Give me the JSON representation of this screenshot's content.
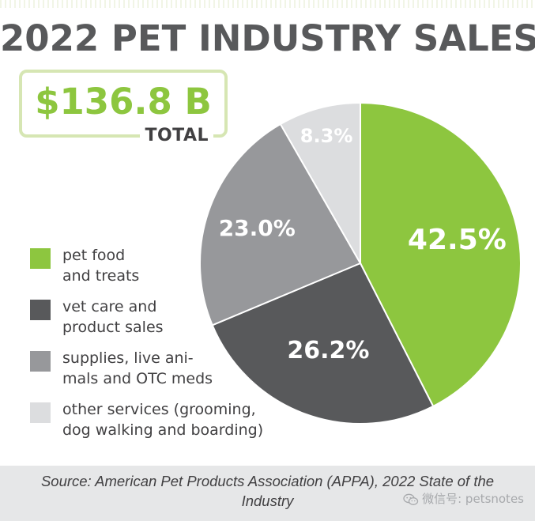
{
  "title": "2022 PET INDUSTRY SALES",
  "total": {
    "value": "$136.8 B",
    "label": "TOTAL"
  },
  "colors": {
    "title": "#58595b",
    "accent_green": "#8dc63f",
    "box_border": "#d6e6b3",
    "source_band": "#e6e7e8",
    "text": "#414042"
  },
  "chart_data": {
    "type": "pie",
    "title": "2022 PET INDUSTRY SALES",
    "slices": [
      {
        "label": "pet food and treats",
        "value": 42.5,
        "display": "42.5%",
        "color": "#8dc63f"
      },
      {
        "label": "vet care and product sales",
        "value": 26.2,
        "display": "26.2%",
        "color": "#58595b"
      },
      {
        "label": "supplies, live animals and OTC meds",
        "value": 23.0,
        "display": "23.0%",
        "color": "#97989b"
      },
      {
        "label": "other services (grooming, dog walking and boarding)",
        "value": 8.3,
        "display": "8.3%",
        "color": "#dcdddf"
      }
    ],
    "legend_placement": "left"
  },
  "legend": [
    {
      "text": "pet food\nand treats"
    },
    {
      "text": "vet care and\nproduct sales"
    },
    {
      "text": "supplies, live ani-\nmals and OTC meds"
    },
    {
      "text": "other services (grooming,\ndog walking and boarding)"
    }
  ],
  "source": "Source: American Pet Products Association (APPA), 2022 State of the Industry",
  "watermark": "微信号: petsnotes",
  "watermark_icon": "wechat-icon"
}
